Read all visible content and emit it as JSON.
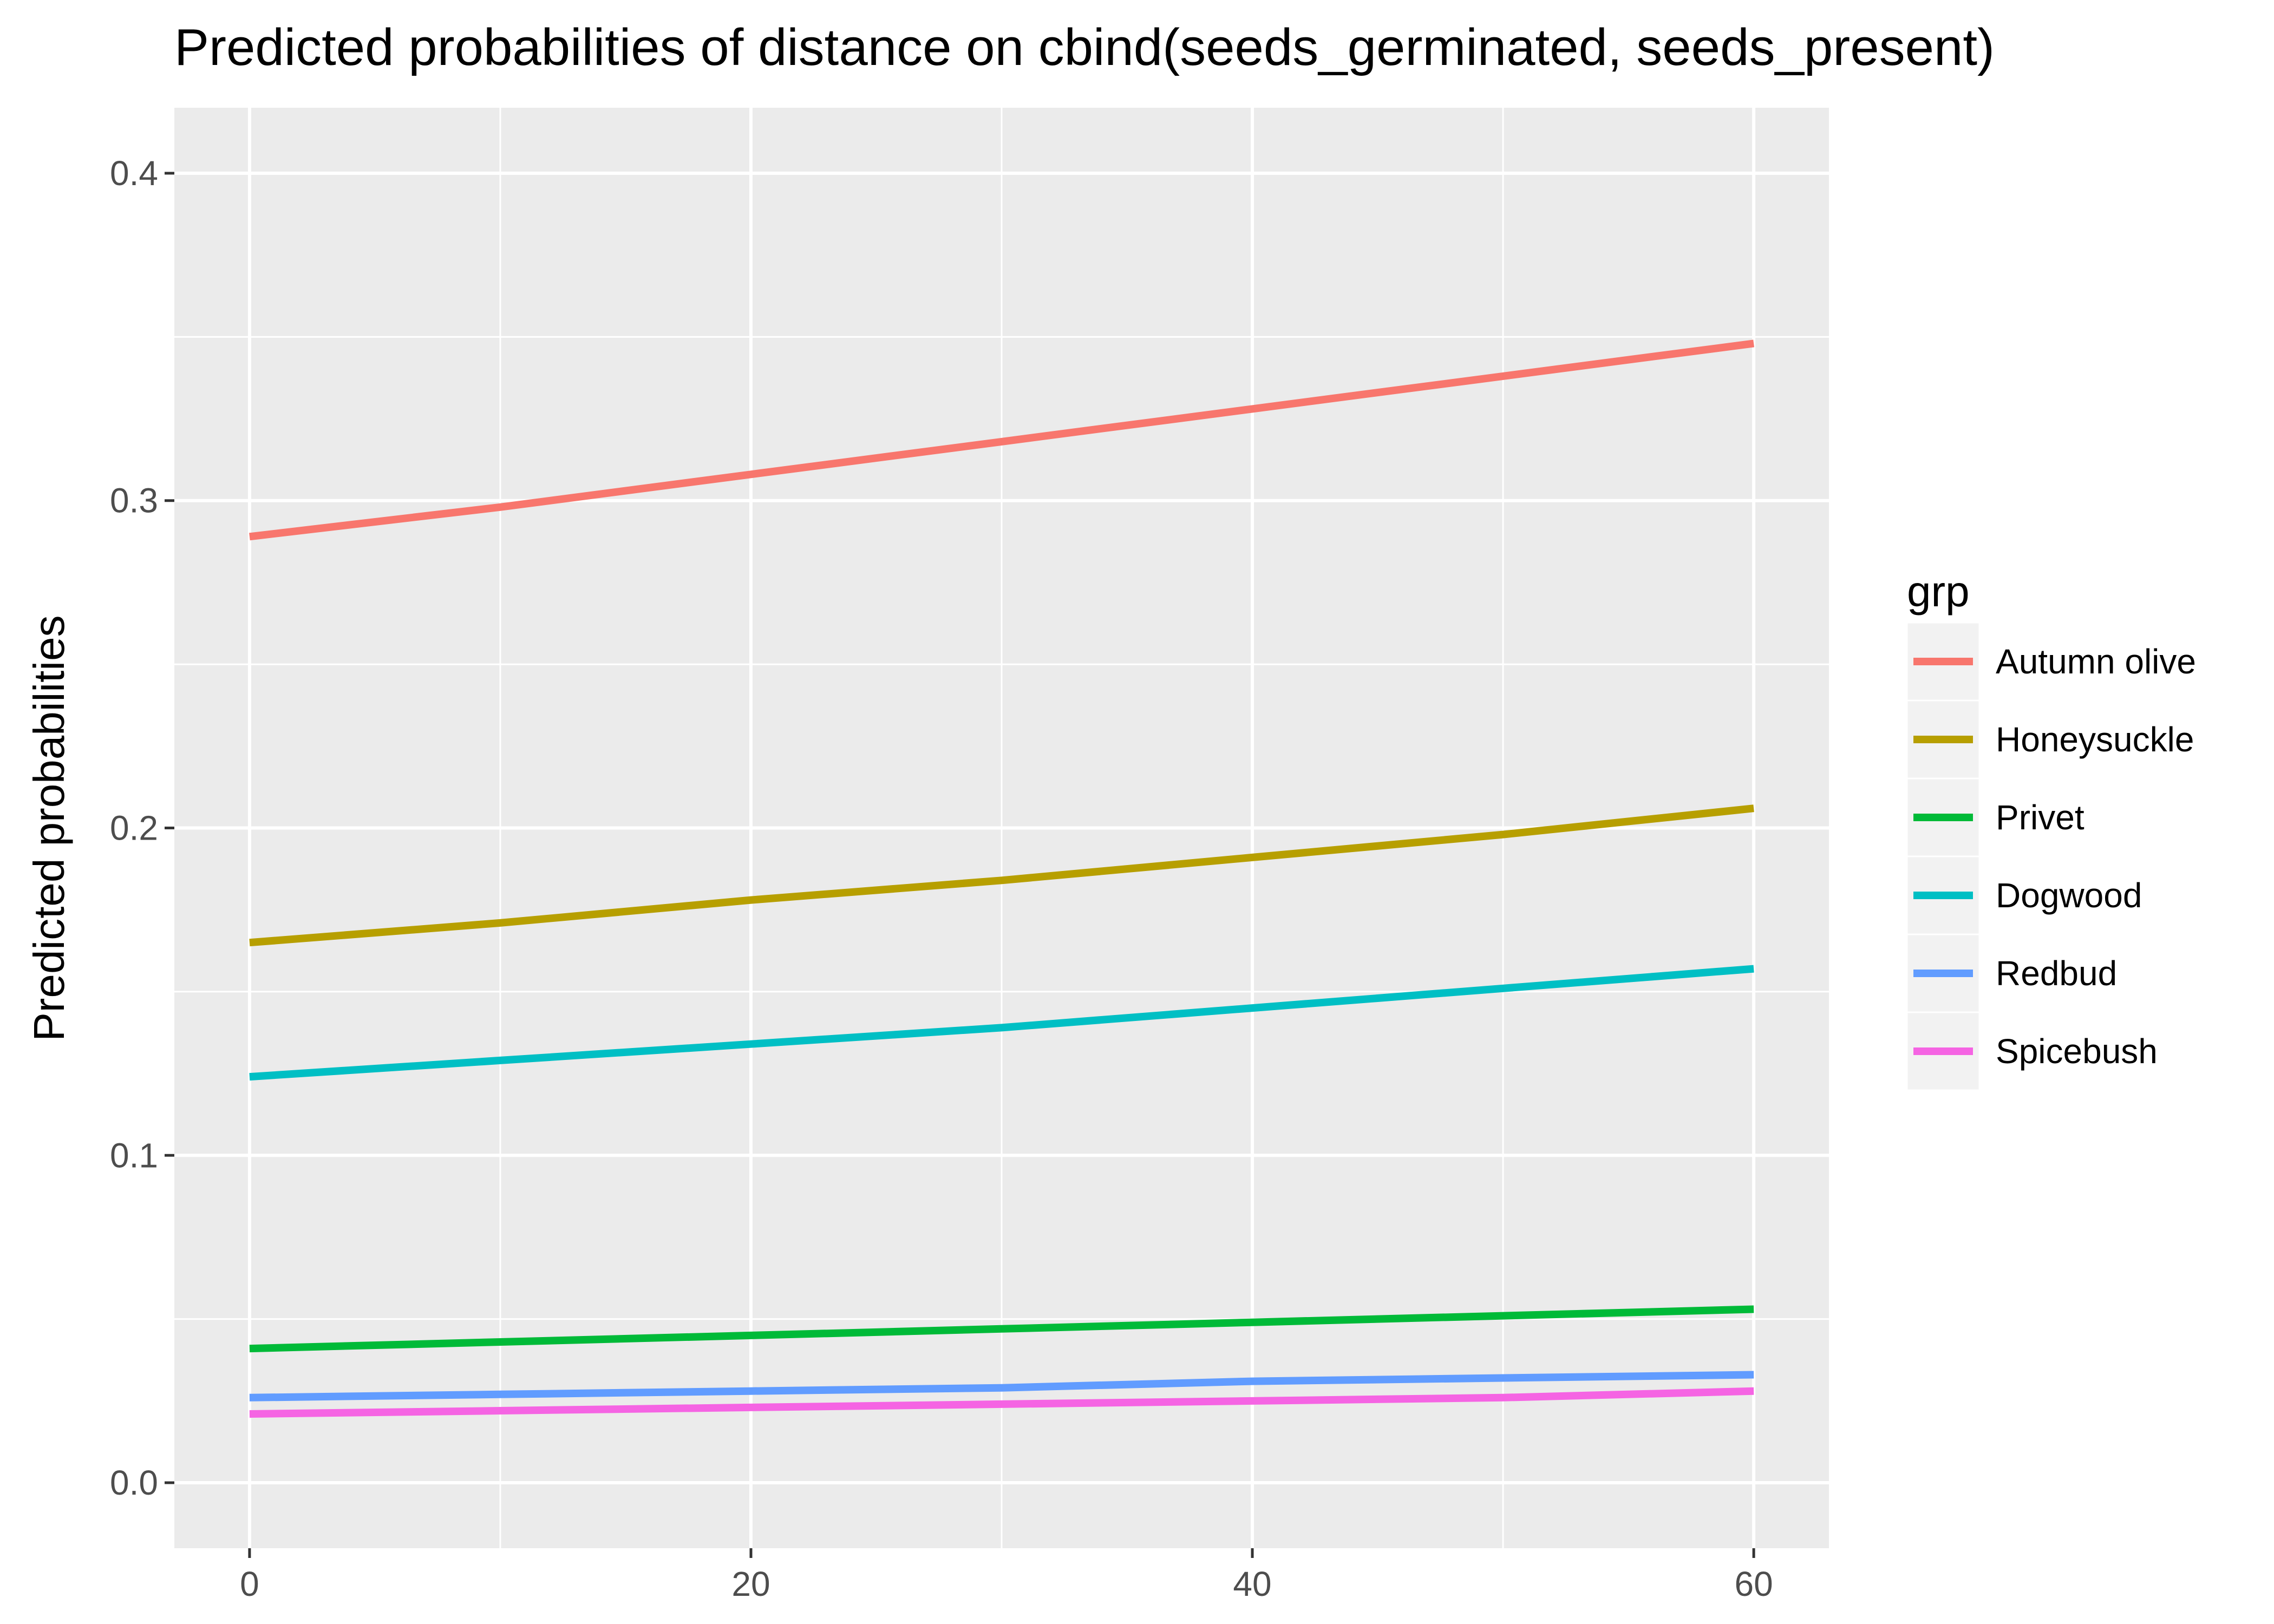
{
  "chart_data": {
    "type": "line",
    "title": "Predicted probabilities of distance on cbind(seeds_germinated, seeds_present)",
    "xlabel": "",
    "ylabel": "Predicted probabilities",
    "xlim": [
      -3,
      63
    ],
    "ylim": [
      -0.02,
      0.42
    ],
    "x_ticks": [
      0,
      20,
      40,
      60
    ],
    "x_tick_labels": [
      "0",
      "20",
      "40",
      "60"
    ],
    "y_ticks": [
      0.0,
      0.1,
      0.2,
      0.3,
      0.4
    ],
    "y_tick_labels": [
      "0.0",
      "0.1",
      "0.2",
      "0.3",
      "0.4"
    ],
    "grid": true,
    "legend_title": "grp",
    "legend_position": "right",
    "x": [
      0,
      10,
      20,
      30,
      40,
      50,
      60
    ],
    "series": [
      {
        "name": "Autumn olive",
        "color": "#F8766D",
        "values": [
          0.289,
          0.298,
          0.308,
          0.318,
          0.328,
          0.338,
          0.348
        ]
      },
      {
        "name": "Honeysuckle",
        "color": "#B79F00",
        "values": [
          0.165,
          0.171,
          0.178,
          0.184,
          0.191,
          0.198,
          0.206
        ]
      },
      {
        "name": "Privet",
        "color": "#00BA38",
        "values": [
          0.041,
          0.043,
          0.045,
          0.047,
          0.049,
          0.051,
          0.053
        ]
      },
      {
        "name": "Dogwood",
        "color": "#00BFC4",
        "values": [
          0.124,
          0.129,
          0.134,
          0.139,
          0.145,
          0.151,
          0.157
        ]
      },
      {
        "name": "Redbud",
        "color": "#619CFF",
        "values": [
          0.026,
          0.027,
          0.028,
          0.029,
          0.031,
          0.032,
          0.033
        ]
      },
      {
        "name": "Spicebush",
        "color": "#F564E3",
        "values": [
          0.021,
          0.022,
          0.023,
          0.024,
          0.025,
          0.026,
          0.028
        ]
      }
    ]
  }
}
